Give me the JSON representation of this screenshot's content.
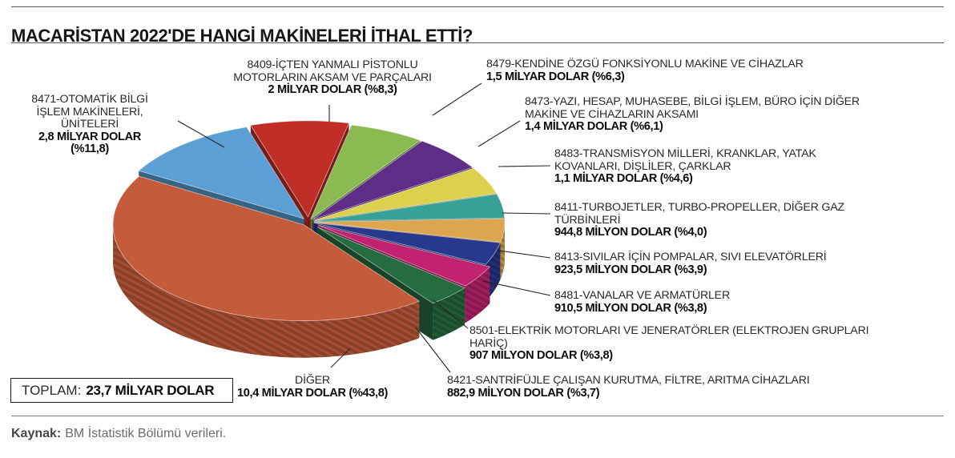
{
  "title": "MACARİSTAN 2022'DE HANGİ MAKİNELERİ İTHAL ETTİ?",
  "total": {
    "label": "TOPLAM:",
    "value": "23,7 MİLYAR DOLAR"
  },
  "source": {
    "label": "Kaynak:",
    "text": "BM İstatistik Bölümü verileri."
  },
  "chart_data": {
    "type": "pie",
    "style": "3d-exploded",
    "title": "MACARİSTAN 2022'DE HANGİ MAKİNELERİ İTHAL ETTİ?",
    "total_label": "TOPLAM: 23,7 MİLYAR DOLAR",
    "unit": "milyon dolar",
    "slices": [
      {
        "name": "8471-OTOMATİK BİLGİ\nİŞLEM MAKİNELERİ,\nÜNİTELERİ",
        "value_label": "2,8 MİLYAR DOLAR\n(%11,8)",
        "value_musd": 2800,
        "pct": 11.8,
        "color": "#5B9FD4"
      },
      {
        "name": "8409-İÇTEN YANMALI PİSTONLU\nMOTORLARIN AKSAM VE PARÇALARI",
        "value_label": "2 MİLYAR DOLAR (%8,3)",
        "value_musd": 2000,
        "pct": 8.3,
        "color": "#BE2E26"
      },
      {
        "name": "8479-KENDİNE ÖZGÜ FONKSİYONLU MAKİNE VE CİHAZLAR",
        "value_label": "1,5 MİLYAR DOLAR (%6,3)",
        "value_musd": 1500,
        "pct": 6.3,
        "color": "#8CBA52"
      },
      {
        "name": "8473-YAZI, HESAP, MUHASEBE, BİLGİ İŞLEM, BÜRO İÇİN DİĞER\nMAKİNE VE CİHAZLARIN AKSAMI",
        "value_label": "1,4 MİLYAR DOLAR (%6,1)",
        "value_musd": 1400,
        "pct": 6.1,
        "color": "#5D2D87"
      },
      {
        "name": "8483-TRANSMİSYON MİLLERİ, KRANKLAR, YATAK\nKOVANLARI, DİŞLİLER, ÇARKLAR",
        "value_label": "1,1 MİLYAR DOLAR (%4,6)",
        "value_musd": 1100,
        "pct": 4.6,
        "color": "#DCD14F"
      },
      {
        "name": "8411-TURBOJETLER, TURBO-PROPELLER, DİĞER GAZ\nTÜRBİNLERİ",
        "value_label": "944,8 MİLYON DOLAR (%4,0)",
        "value_musd": 944.8,
        "pct": 4.0,
        "color": "#37A097"
      },
      {
        "name": "8413-SIVILAR İÇİN POMPALAR, SIVI ELEVATÖRLERİ",
        "value_label": "923,5 MİLYON DOLAR (%3,9)",
        "value_musd": 923.5,
        "pct": 3.9,
        "color": "#DDA54D"
      },
      {
        "name": "8481-VANALAR VE ARMATÜRLER",
        "value_label": "910,5 MİLYON DOLAR (%3,8)",
        "value_musd": 910.5,
        "pct": 3.8,
        "color": "#28388C"
      },
      {
        "name": "8501-ELEKTRİK MOTORLARI VE JENERATÖRLER (ELEKTROJEN GRUPLARI\nHARİÇ)",
        "value_label": "907 MİLYON DOLAR (%3,8)",
        "value_musd": 907,
        "pct": 3.8,
        "color": "#C22370"
      },
      {
        "name": "8421-SANTRİFÜJLE ÇALIŞAN KURUTMA, FİLTRE, ARITMA CİHAZLARI",
        "value_label": "882,9 MİLYON DOLAR (%3,7)",
        "value_musd": 882.9,
        "pct": 3.7,
        "color": "#266C41"
      },
      {
        "name": "DİĞER",
        "value_label": "10,4 MİLYAR DOLAR (%43,8)",
        "value_musd": 10400,
        "pct": 43.8,
        "color": "#C45C3C"
      }
    ]
  }
}
